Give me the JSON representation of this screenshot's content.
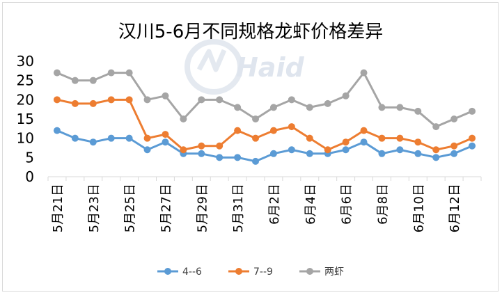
{
  "chart_data": {
    "type": "line",
    "title": "汉川5-6月不同规格龙虾价格差异",
    "watermark": "Haid",
    "categories": [
      "5月21日",
      "5月22日",
      "5月23日",
      "5月24日",
      "5月25日",
      "5月26日",
      "5月27日",
      "5月28日",
      "5月29日",
      "5月30日",
      "5月31日",
      "6月1日",
      "6月2日",
      "6月3日",
      "6月4日",
      "6月5日",
      "6月6日",
      "6月7日",
      "6月8日",
      "6月9日",
      "6月10日",
      "6月11日",
      "6月12日",
      "6月13日"
    ],
    "tick_labels": [
      "5月21日",
      "5月23日",
      "5月25日",
      "5月27日",
      "5月29日",
      "5月31日",
      "6月2日",
      "6月4日",
      "6月6日",
      "6月8日",
      "6月10日",
      "6月12日"
    ],
    "y_ticks": [
      "0",
      "5",
      "10",
      "15",
      "20",
      "25",
      "30"
    ],
    "ylim": [
      0,
      30
    ],
    "grid": false,
    "legend_position": "bottom",
    "series": [
      {
        "name": "4--6",
        "color": "#5b9bd5",
        "values": [
          12,
          10,
          9,
          10,
          10,
          7,
          9,
          6,
          6,
          5,
          5,
          4,
          6,
          7,
          6,
          6,
          7,
          9,
          6,
          7,
          6,
          5,
          6,
          8
        ]
      },
      {
        "name": "7--9",
        "color": "#ed7d31",
        "values": [
          20,
          19,
          19,
          20,
          20,
          10,
          11,
          7,
          8,
          8,
          12,
          10,
          12,
          13,
          10,
          7,
          9,
          12,
          10,
          10,
          9,
          7,
          8,
          10
        ]
      },
      {
        "name": "两虾",
        "color": "#a5a5a5",
        "values": [
          27,
          25,
          25,
          27,
          27,
          20,
          21,
          15,
          20,
          20,
          18,
          15,
          18,
          20,
          18,
          19,
          21,
          27,
          18,
          18,
          17,
          13,
          15,
          17
        ]
      }
    ]
  }
}
